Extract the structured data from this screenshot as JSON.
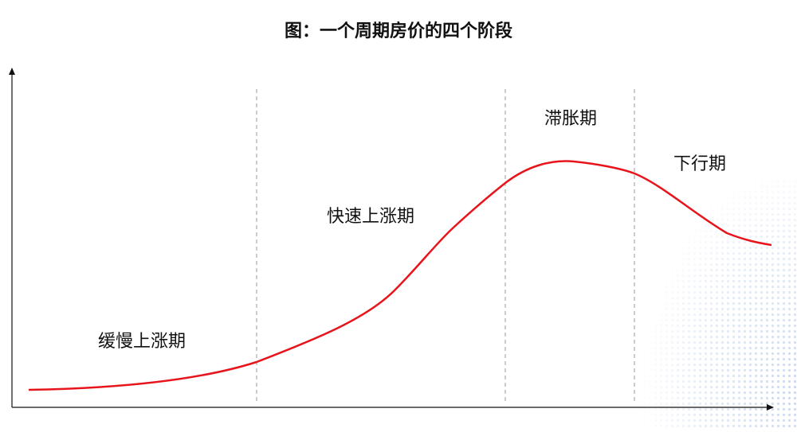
{
  "title": "图：一个周期房价的四个阶段",
  "phases": [
    {
      "label": "缓慢上涨期"
    },
    {
      "label": "快速上涨期"
    },
    {
      "label": "滞胀期"
    },
    {
      "label": "下行期"
    }
  ]
}
